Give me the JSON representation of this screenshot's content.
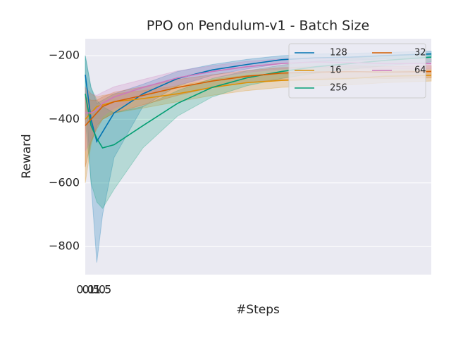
{
  "chart_data": {
    "type": "line",
    "title": "PPO on Pendulum-v1 - Batch Size",
    "xlabel": "#Steps",
    "ylabel": "Reward",
    "x": [
      0,
      0.5,
      1,
      1.5,
      2.5,
      5,
      8,
      11,
      14,
      17,
      20,
      23,
      26,
      30
    ],
    "xlim": [
      0,
      30
    ],
    "xticks": [
      {
        "value": 0,
        "label": "0.0"
      },
      {
        "value": 0.5,
        "label": "0.5"
      },
      {
        "value": 1,
        "label": "1.0"
      },
      {
        "value": 1.5,
        "label": "1.5"
      }
    ],
    "ylim": [
      -888,
      -147
    ],
    "yticks": [
      {
        "value": -200,
        "label": "−200"
      },
      {
        "value": -400,
        "label": "−400"
      },
      {
        "value": -600,
        "label": "−600"
      },
      {
        "value": -800,
        "label": "−800"
      }
    ],
    "grid": true,
    "legend": "upper right",
    "series": [
      {
        "name": "128",
        "color": "#0173b2",
        "values": [
          -260,
          -400,
          -470,
          -440,
          -380,
          -320,
          -272,
          -245,
          -228,
          -213,
          -207,
          -205,
          -200,
          -195
        ],
        "lower": [
          -300,
          -600,
          -850,
          -700,
          -520,
          -360,
          -295,
          -262,
          -242,
          -225,
          -218,
          -215,
          -210,
          -205
        ],
        "upper": [
          -200,
          -300,
          -350,
          -340,
          -320,
          -290,
          -250,
          -228,
          -212,
          -200,
          -195,
          -193,
          -190,
          -186
        ]
      },
      {
        "name": "16",
        "color": "#de8f05",
        "values": [
          -400,
          -380,
          -360,
          -355,
          -345,
          -335,
          -320,
          -300,
          -285,
          -278,
          -275,
          -272,
          -265,
          -262
        ],
        "lower": [
          -600,
          -480,
          -420,
          -400,
          -380,
          -365,
          -345,
          -325,
          -310,
          -300,
          -295,
          -292,
          -285,
          -280
        ],
        "upper": [
          -300,
          -320,
          -330,
          -325,
          -320,
          -310,
          -295,
          -275,
          -262,
          -258,
          -255,
          -252,
          -248,
          -245
        ]
      },
      {
        "name": "256",
        "color": "#029e73",
        "values": [
          -320,
          -420,
          -460,
          -490,
          -480,
          -420,
          -350,
          -300,
          -270,
          -250,
          -235,
          -225,
          -215,
          -205
        ],
        "lower": [
          -400,
          -600,
          -660,
          -680,
          -620,
          -490,
          -390,
          -330,
          -295,
          -272,
          -255,
          -243,
          -232,
          -220
        ],
        "upper": [
          -200,
          -300,
          -340,
          -360,
          -380,
          -360,
          -310,
          -272,
          -248,
          -230,
          -218,
          -208,
          -200,
          -192
        ]
      },
      {
        "name": "32",
        "color": "#d55e00",
        "values": [
          -420,
          -400,
          -380,
          -360,
          -345,
          -325,
          -300,
          -280,
          -265,
          -255,
          -252,
          -250,
          -252,
          -250
        ],
        "lower": [
          -550,
          -470,
          -430,
          -400,
          -380,
          -355,
          -325,
          -300,
          -285,
          -275,
          -272,
          -270,
          -272,
          -270
        ],
        "upper": [
          -330,
          -340,
          -340,
          -330,
          -315,
          -298,
          -275,
          -260,
          -247,
          -238,
          -234,
          -232,
          -234,
          -232
        ]
      },
      {
        "name": "64",
        "color": "#cc78bc",
        "values": [
          -380,
          -380,
          -370,
          -350,
          -330,
          -300,
          -270,
          -250,
          -235,
          -225,
          -220,
          -222,
          -225,
          -225
        ],
        "lower": [
          -500,
          -460,
          -420,
          -390,
          -365,
          -328,
          -292,
          -270,
          -253,
          -242,
          -237,
          -238,
          -242,
          -242
        ],
        "upper": [
          -300,
          -320,
          -325,
          -315,
          -298,
          -275,
          -248,
          -232,
          -218,
          -210,
          -205,
          -207,
          -210,
          -210
        ]
      }
    ]
  }
}
